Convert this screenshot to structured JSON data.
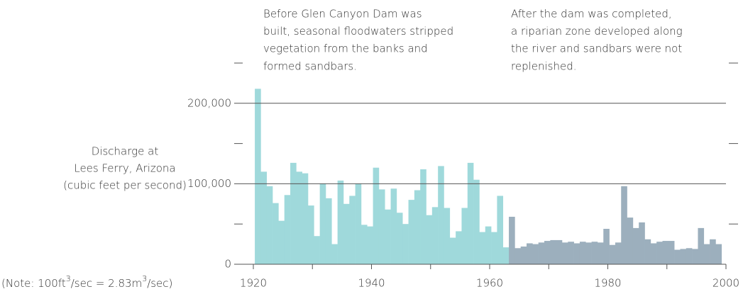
{
  "chart_data": {
    "type": "bar",
    "annotations": [
      [
        "Before Glen Canyon Dam was",
        "built, seasonal floodwaters stripped",
        "vegetation from the banks and",
        "formed sandbars."
      ],
      [
        "After the dam was completed,",
        "a riparian zone developed along",
        "the river and sandbars were not",
        "replenished."
      ]
    ],
    "y_label": [
      "Discharge at",
      "Lees Ferry, Arizona",
      "(cubic feet per second)"
    ],
    "note": [
      "(Note: 100ft",
      "3",
      "/sec = 2.83m",
      "3",
      "/sec)"
    ],
    "xlim": [
      1920,
      2000
    ],
    "xticks": [
      1920,
      1940,
      1960,
      1980,
      2000
    ],
    "minor_xticks": [
      1930,
      1950,
      1970,
      1990
    ],
    "ylim": [
      0,
      250000
    ],
    "yticks": [
      0,
      {
        "value": 100000,
        "label": "100,000"
      },
      {
        "value": 200000,
        "label": "200,000"
      }
    ],
    "minor_yticks": [
      50000,
      150000,
      250000
    ],
    "grid": true,
    "series": [
      {
        "color": "#9fd9db",
        "x": [
          1921,
          1922,
          1923,
          1924,
          1925,
          1926,
          1927,
          1928,
          1929,
          1930,
          1931,
          1932,
          1933,
          1934,
          1935,
          1936,
          1937,
          1938,
          1939,
          1940,
          1941,
          1942,
          1943,
          1944,
          1945,
          1946,
          1947,
          1948,
          1949,
          1950,
          1951,
          1952,
          1953,
          1954,
          1955,
          1956,
          1957,
          1958,
          1959,
          1960,
          1961,
          1962,
          1963
        ],
        "values": [
          218000,
          115000,
          97000,
          76000,
          54000,
          86000,
          126000,
          115000,
          113000,
          73000,
          35000,
          100000,
          82000,
          25000,
          104000,
          75000,
          85000,
          100000,
          49000,
          47000,
          120000,
          93000,
          68000,
          94000,
          64000,
          50000,
          80000,
          92000,
          118000,
          61000,
          71000,
          122000,
          70000,
          33000,
          41000,
          70000,
          126000,
          105000,
          40000,
          47000,
          40000,
          85000,
          21000
        ]
      },
      {
        "color": "#9cafbd",
        "x": [
          1964,
          1965,
          1966,
          1967,
          1968,
          1969,
          1970,
          1971,
          1972,
          1973,
          1974,
          1975,
          1976,
          1977,
          1978,
          1979,
          1980,
          1981,
          1982,
          1983,
          1984,
          1985,
          1986,
          1987,
          1988,
          1989,
          1990,
          1991,
          1992,
          1993,
          1994,
          1995,
          1996,
          1997,
          1998,
          1999
        ],
        "values": [
          59000,
          20000,
          22000,
          26000,
          25000,
          27000,
          29000,
          30000,
          30000,
          27000,
          28000,
          26000,
          28000,
          27000,
          28000,
          27000,
          44000,
          24000,
          27000,
          97000,
          58000,
          45000,
          52000,
          31000,
          26000,
          28000,
          29000,
          29000,
          18000,
          19000,
          20000,
          19000,
          45000,
          25000,
          31000,
          25000
        ]
      }
    ]
  }
}
